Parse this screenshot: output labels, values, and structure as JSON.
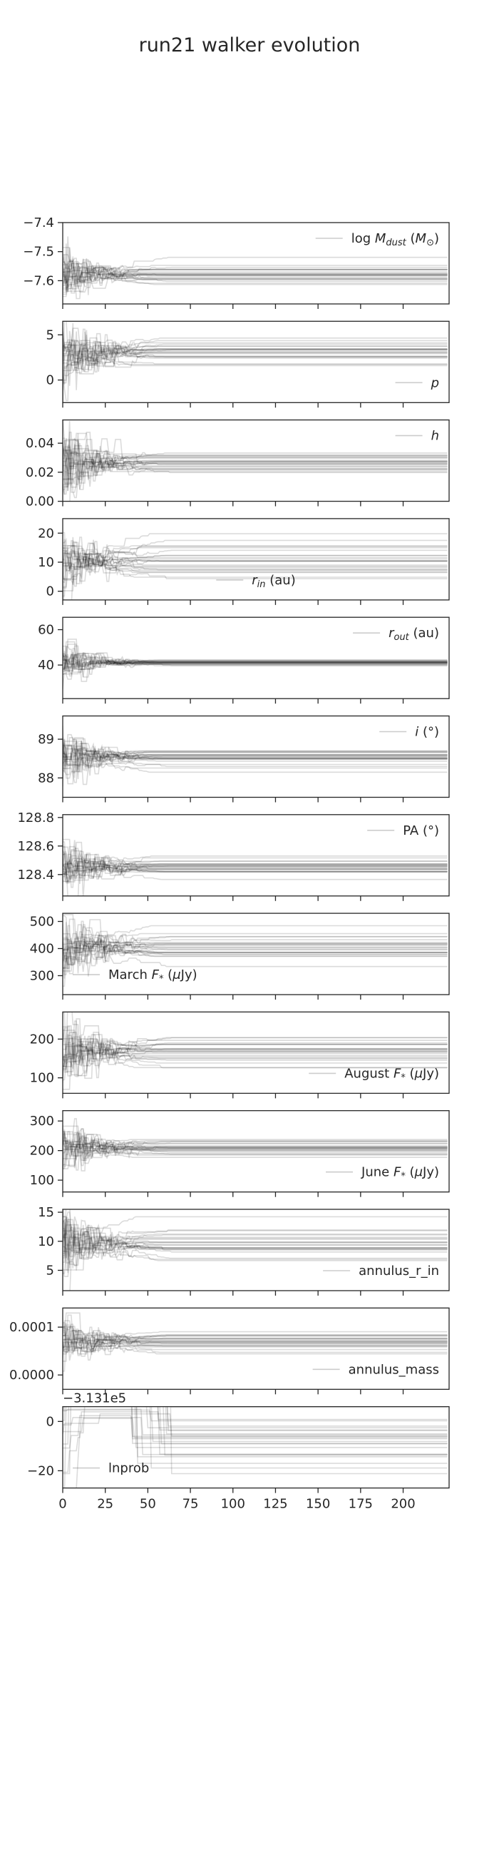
{
  "figure": {
    "title": "run21 walker evolution"
  },
  "chart_data": {
    "type": "line",
    "n_steps": 227,
    "xlim": [
      0,
      227
    ],
    "xticks": [
      0,
      25,
      50,
      75,
      100,
      125,
      150,
      175,
      200
    ],
    "xtick_labels": [
      "0",
      "25",
      "50",
      "75",
      "100",
      "125",
      "150",
      "175",
      "200"
    ],
    "line_color": "#000000",
    "panels": [
      {
        "legend": "log $M_{dust}$ ($M_{\\odot}$)",
        "legend_parts": [
          [
            "log "
          ],
          [
            "M",
            "i"
          ],
          [
            "dust",
            "sub-i"
          ],
          [
            " ("
          ],
          [
            "M",
            "i"
          ],
          [
            "⊙",
            "sub"
          ],
          [
            ")"
          ]
        ],
        "legend_loc": "upper right",
        "ylim": [
          -7.68,
          -7.4
        ],
        "yticks": [
          -7.4,
          -7.5,
          -7.6
        ],
        "ytick_labels": [
          "−7.4",
          "−7.5",
          "−7.6"
        ],
        "center": -7.575,
        "spread": 0.02,
        "init_spread": 0.05,
        "burnin": 40
      },
      {
        "legend": "p",
        "legend_parts": [
          [
            "p",
            "i"
          ]
        ],
        "legend_loc": "lower right",
        "ylim": [
          -2.5,
          6.5
        ],
        "yticks": [
          5,
          0
        ],
        "ytick_labels": [
          "5",
          "0"
        ],
        "center": 2.8,
        "spread": 0.9,
        "init_spread": 2.2,
        "burnin": 40
      },
      {
        "legend": "h",
        "legend_parts": [
          [
            "h",
            "i"
          ]
        ],
        "legend_loc": "upper right",
        "ylim": [
          0.0,
          0.056
        ],
        "yticks": [
          0.04,
          0.02,
          0.0
        ],
        "ytick_labels": [
          "0.04",
          "0.02",
          "0.00"
        ],
        "center": 0.026,
        "spread": 0.004,
        "init_spread": 0.014,
        "burnin": 40
      },
      {
        "legend": "r_in (au)",
        "legend_parts": [
          [
            "r",
            "i"
          ],
          [
            "in",
            "sub-i"
          ],
          [
            " (au)"
          ]
        ],
        "legend_loc": "lower center",
        "ylim": [
          -3,
          25
        ],
        "yticks": [
          20,
          10,
          0
        ],
        "ytick_labels": [
          "20",
          "10",
          "0"
        ],
        "center": 10.5,
        "spread": 4.0,
        "init_spread": 6,
        "burnin": 40
      },
      {
        "legend": "r_out (au)",
        "legend_parts": [
          [
            "r",
            "i"
          ],
          [
            "out",
            "sub-i"
          ],
          [
            " (au)"
          ]
        ],
        "legend_loc": "upper right",
        "ylim": [
          21,
          67
        ],
        "yticks": [
          60,
          40
        ],
        "ytick_labels": [
          "60",
          "40"
        ],
        "center": 41.5,
        "spread": 0.8,
        "init_spread": 6,
        "burnin": 40
      },
      {
        "legend": "i (°)",
        "legend_parts": [
          [
            "i",
            "i"
          ],
          [
            " (°)"
          ]
        ],
        "legend_loc": "upper right",
        "ylim": [
          87.5,
          89.6
        ],
        "yticks": [
          89,
          88
        ],
        "ytick_labels": [
          "89",
          "88"
        ],
        "center": 88.55,
        "spread": 0.12,
        "init_spread": 0.35,
        "burnin": 40
      },
      {
        "legend": "PA  (°)",
        "legend_parts": [
          [
            "PA  (°)"
          ]
        ],
        "legend_loc": "upper right",
        "ylim": [
          128.25,
          128.82
        ],
        "yticks": [
          128.8,
          128.6,
          128.4
        ],
        "ytick_labels": [
          "128.8",
          "128.6",
          "128.4"
        ],
        "center": 128.45,
        "spread": 0.035,
        "init_spread": 0.1,
        "burnin": 40
      },
      {
        "legend": "March F_* (μJy)",
        "legend_parts": [
          [
            "March "
          ],
          [
            "F",
            "i"
          ],
          [
            "*",
            "sub"
          ],
          [
            " ("
          ],
          [
            "μ",
            "i"
          ],
          [
            "Jy)"
          ]
        ],
        "legend_loc": "lower left",
        "ylim": [
          230,
          530
        ],
        "yticks": [
          500,
          400,
          300
        ],
        "ytick_labels": [
          "500",
          "400",
          "300"
        ],
        "center": 408,
        "spread": 28,
        "init_spread": 60,
        "burnin": 40
      },
      {
        "legend": "August F_* (μJy)",
        "legend_parts": [
          [
            "August "
          ],
          [
            "F",
            "i"
          ],
          [
            "*",
            "sub"
          ],
          [
            " ("
          ],
          [
            "μ",
            "i"
          ],
          [
            "Jy)"
          ]
        ],
        "legend_loc": "lower right",
        "ylim": [
          60,
          270
        ],
        "yticks": [
          200,
          100
        ],
        "ytick_labels": [
          "200",
          "100"
        ],
        "center": 168,
        "spread": 22,
        "init_spread": 45,
        "burnin": 40
      },
      {
        "legend": "June F_* (μJy)",
        "legend_parts": [
          [
            "June "
          ],
          [
            "F",
            "i"
          ],
          [
            "*",
            "sub"
          ],
          [
            " ("
          ],
          [
            "μ",
            "i"
          ],
          [
            "Jy)"
          ]
        ],
        "legend_loc": "lower right",
        "ylim": [
          60,
          335
        ],
        "yticks": [
          300,
          200,
          100
        ],
        "ytick_labels": [
          "300",
          "200",
          "100"
        ],
        "center": 212,
        "spread": 18,
        "init_spread": 45,
        "burnin": 40
      },
      {
        "legend": "annulus_r_in",
        "legend_parts": [
          [
            "annulus_r_in"
          ]
        ],
        "legend_loc": "lower right",
        "ylim": [
          1.5,
          15.5
        ],
        "yticks": [
          15,
          10,
          5
        ],
        "ytick_labels": [
          "15",
          "10",
          "5"
        ],
        "center": 9.8,
        "spread": 1.6,
        "init_spread": 3,
        "burnin": 40
      },
      {
        "legend": "annulus_mass",
        "legend_parts": [
          [
            "annulus_mass"
          ]
        ],
        "legend_loc": "lower right",
        "ylim": [
          -3e-05,
          0.00014
        ],
        "yticks": [
          0.0001,
          0.0
        ],
        "ytick_labels": [
          "0.0001",
          "0.0000"
        ],
        "center": 7e-05,
        "spread": 1e-05,
        "init_spread": 2.5e-05,
        "burnin": 40
      },
      {
        "legend": "lnprob",
        "legend_parts": [
          [
            "lnprob"
          ]
        ],
        "legend_loc": "lower left",
        "offset_label": "−3.131e5",
        "ylim": [
          -27,
          6
        ],
        "yticks": [
          0,
          -20
        ],
        "ytick_labels": [
          "0",
          "−20"
        ],
        "center": -5,
        "spread": 8,
        "init_spread": 14,
        "burnin": 40,
        "is_lnprob": true
      }
    ]
  }
}
